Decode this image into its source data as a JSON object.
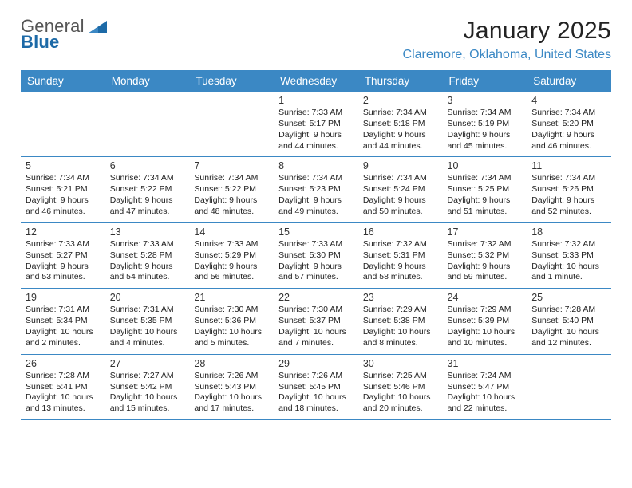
{
  "branding": {
    "name_top": "General",
    "name_bottom": "Blue",
    "grey_color": "#555555",
    "blue_color": "#1d6aa7",
    "glyph_fill": "#1d6aa7"
  },
  "header": {
    "month_title": "January 2025",
    "location": "Claremore, Oklahoma, United States"
  },
  "styling": {
    "background_color": "#ffffff",
    "header_band_color": "#3b88c4",
    "header_text_color": "#ffffff",
    "rule_color": "#3b88c4",
    "body_text_color": "#222222",
    "daynum_color": "#333333",
    "title_fontsize_pt": 23,
    "location_fontsize_pt": 12,
    "header_fontsize_pt": 10,
    "daynum_fontsize_pt": 9,
    "daytext_fontsize_pt": 8,
    "font_family": "Arial"
  },
  "calendar": {
    "type": "table",
    "columns": [
      "Sunday",
      "Monday",
      "Tuesday",
      "Wednesday",
      "Thursday",
      "Friday",
      "Saturday"
    ],
    "rows": [
      [
        null,
        null,
        null,
        {
          "n": "1",
          "sr": "7:33 AM",
          "ss": "5:17 PM",
          "dl": "9 hours and 44 minutes."
        },
        {
          "n": "2",
          "sr": "7:34 AM",
          "ss": "5:18 PM",
          "dl": "9 hours and 44 minutes."
        },
        {
          "n": "3",
          "sr": "7:34 AM",
          "ss": "5:19 PM",
          "dl": "9 hours and 45 minutes."
        },
        {
          "n": "4",
          "sr": "7:34 AM",
          "ss": "5:20 PM",
          "dl": "9 hours and 46 minutes."
        }
      ],
      [
        {
          "n": "5",
          "sr": "7:34 AM",
          "ss": "5:21 PM",
          "dl": "9 hours and 46 minutes."
        },
        {
          "n": "6",
          "sr": "7:34 AM",
          "ss": "5:22 PM",
          "dl": "9 hours and 47 minutes."
        },
        {
          "n": "7",
          "sr": "7:34 AM",
          "ss": "5:22 PM",
          "dl": "9 hours and 48 minutes."
        },
        {
          "n": "8",
          "sr": "7:34 AM",
          "ss": "5:23 PM",
          "dl": "9 hours and 49 minutes."
        },
        {
          "n": "9",
          "sr": "7:34 AM",
          "ss": "5:24 PM",
          "dl": "9 hours and 50 minutes."
        },
        {
          "n": "10",
          "sr": "7:34 AM",
          "ss": "5:25 PM",
          "dl": "9 hours and 51 minutes."
        },
        {
          "n": "11",
          "sr": "7:34 AM",
          "ss": "5:26 PM",
          "dl": "9 hours and 52 minutes."
        }
      ],
      [
        {
          "n": "12",
          "sr": "7:33 AM",
          "ss": "5:27 PM",
          "dl": "9 hours and 53 minutes."
        },
        {
          "n": "13",
          "sr": "7:33 AM",
          "ss": "5:28 PM",
          "dl": "9 hours and 54 minutes."
        },
        {
          "n": "14",
          "sr": "7:33 AM",
          "ss": "5:29 PM",
          "dl": "9 hours and 56 minutes."
        },
        {
          "n": "15",
          "sr": "7:33 AM",
          "ss": "5:30 PM",
          "dl": "9 hours and 57 minutes."
        },
        {
          "n": "16",
          "sr": "7:32 AM",
          "ss": "5:31 PM",
          "dl": "9 hours and 58 minutes."
        },
        {
          "n": "17",
          "sr": "7:32 AM",
          "ss": "5:32 PM",
          "dl": "9 hours and 59 minutes."
        },
        {
          "n": "18",
          "sr": "7:32 AM",
          "ss": "5:33 PM",
          "dl": "10 hours and 1 minute."
        }
      ],
      [
        {
          "n": "19",
          "sr": "7:31 AM",
          "ss": "5:34 PM",
          "dl": "10 hours and 2 minutes."
        },
        {
          "n": "20",
          "sr": "7:31 AM",
          "ss": "5:35 PM",
          "dl": "10 hours and 4 minutes."
        },
        {
          "n": "21",
          "sr": "7:30 AM",
          "ss": "5:36 PM",
          "dl": "10 hours and 5 minutes."
        },
        {
          "n": "22",
          "sr": "7:30 AM",
          "ss": "5:37 PM",
          "dl": "10 hours and 7 minutes."
        },
        {
          "n": "23",
          "sr": "7:29 AM",
          "ss": "5:38 PM",
          "dl": "10 hours and 8 minutes."
        },
        {
          "n": "24",
          "sr": "7:29 AM",
          "ss": "5:39 PM",
          "dl": "10 hours and 10 minutes."
        },
        {
          "n": "25",
          "sr": "7:28 AM",
          "ss": "5:40 PM",
          "dl": "10 hours and 12 minutes."
        }
      ],
      [
        {
          "n": "26",
          "sr": "7:28 AM",
          "ss": "5:41 PM",
          "dl": "10 hours and 13 minutes."
        },
        {
          "n": "27",
          "sr": "7:27 AM",
          "ss": "5:42 PM",
          "dl": "10 hours and 15 minutes."
        },
        {
          "n": "28",
          "sr": "7:26 AM",
          "ss": "5:43 PM",
          "dl": "10 hours and 17 minutes."
        },
        {
          "n": "29",
          "sr": "7:26 AM",
          "ss": "5:45 PM",
          "dl": "10 hours and 18 minutes."
        },
        {
          "n": "30",
          "sr": "7:25 AM",
          "ss": "5:46 PM",
          "dl": "10 hours and 20 minutes."
        },
        {
          "n": "31",
          "sr": "7:24 AM",
          "ss": "5:47 PM",
          "dl": "10 hours and 22 minutes."
        },
        null
      ]
    ],
    "labels": {
      "sunrise_prefix": "Sunrise: ",
      "sunset_prefix": "Sunset: ",
      "daylight_prefix": "Daylight: "
    }
  }
}
